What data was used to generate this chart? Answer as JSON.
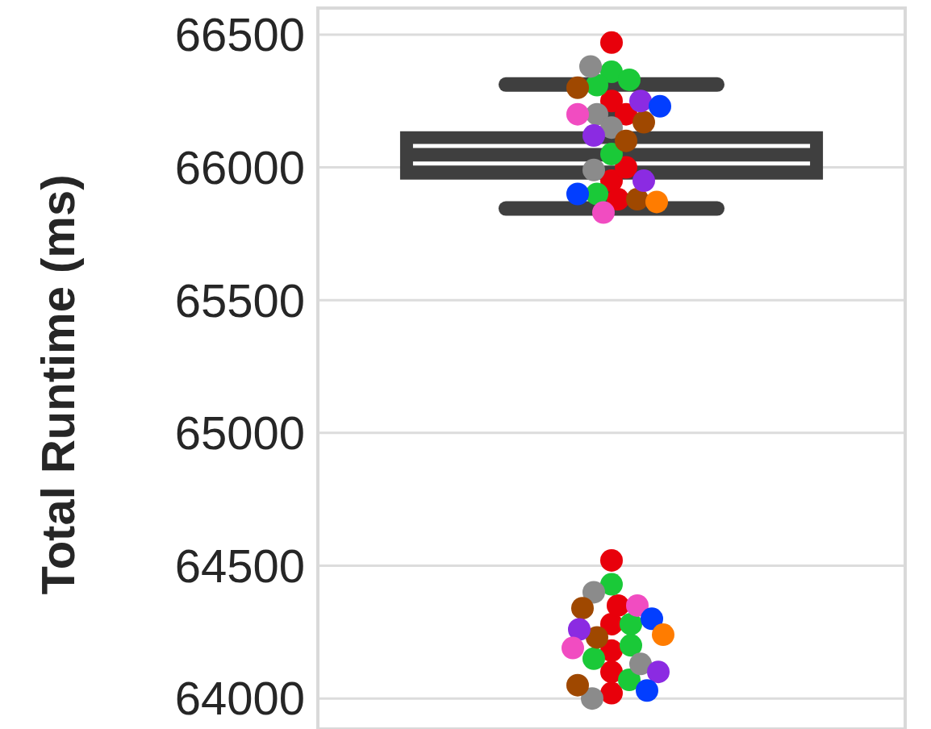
{
  "chart_data": {
    "type": "box",
    "ylabel": "Total Runtime (ms)",
    "categories": [
      null
    ],
    "boxes": [
      {
        "low": 65845,
        "q1": 65954,
        "median": 66015,
        "q3": 66136,
        "high": 66312,
        "mean": 66081
      }
    ],
    "colors": [
      "#3f3f3f"
    ],
    "series": [
      {
        "type": "scatter",
        "color": "#e8000b",
        "values": [
          66470
        ]
      },
      {
        "type": "scatter",
        "color": "#e8000b",
        "values": [
          66250
        ]
      },
      {
        "type": "scatter",
        "color": "#e8000b",
        "values": [
          66200
        ]
      },
      {
        "type": "scatter",
        "color": "#e8000b",
        "values": [
          65950
        ]
      },
      {
        "type": "scatter",
        "color": "#e8000b",
        "values": [
          66000
        ]
      },
      {
        "type": "scatter",
        "color": "#e8000b",
        "values": [
          65880
        ]
      },
      {
        "type": "scatter",
        "color": "#e8000b",
        "values": [
          64520
        ]
      },
      {
        "type": "scatter",
        "color": "#e8000b",
        "values": [
          64280
        ]
      },
      {
        "type": "scatter",
        "color": "#e8000b",
        "values": [
          64180
        ]
      },
      {
        "type": "scatter",
        "color": "#e8000b",
        "values": [
          64020
        ]
      },
      {
        "type": "scatter",
        "color": "#e8000b",
        "values": [
          64100
        ]
      },
      {
        "type": "scatter",
        "color": "#e8000b",
        "values": [
          64350
        ]
      },
      {
        "type": "scatter",
        "color": "#1ac938",
        "values": [
          66360
        ]
      },
      {
        "type": "scatter",
        "color": "#1ac938",
        "values": [
          66330
        ]
      },
      {
        "type": "scatter",
        "color": "#1ac938",
        "values": [
          66310
        ]
      },
      {
        "type": "scatter",
        "color": "#1ac938",
        "values": [
          65900
        ]
      },
      {
        "type": "scatter",
        "color": "#1ac938",
        "values": [
          66050
        ]
      },
      {
        "type": "scatter",
        "color": "#1ac938",
        "values": [
          64430
        ]
      },
      {
        "type": "scatter",
        "color": "#1ac938",
        "values": [
          64280
        ]
      },
      {
        "type": "scatter",
        "color": "#1ac938",
        "values": [
          64200
        ]
      },
      {
        "type": "scatter",
        "color": "#1ac938",
        "values": [
          64150
        ]
      },
      {
        "type": "scatter",
        "color": "#1ac938",
        "values": [
          64070
        ]
      },
      {
        "type": "scatter",
        "color": "#8b8b8b",
        "values": [
          66380
        ]
      },
      {
        "type": "scatter",
        "color": "#8b8b8b",
        "values": [
          66200
        ]
      },
      {
        "type": "scatter",
        "color": "#8b8b8b",
        "values": [
          66150
        ]
      },
      {
        "type": "scatter",
        "color": "#8b8b8b",
        "values": [
          65990
        ]
      },
      {
        "type": "scatter",
        "color": "#8b8b8b",
        "values": [
          64400
        ]
      },
      {
        "type": "scatter",
        "color": "#8b8b8b",
        "values": [
          64130
        ]
      },
      {
        "type": "scatter",
        "color": "#8b8b8b",
        "values": [
          64000
        ]
      },
      {
        "type": "scatter",
        "color": "#9f4800",
        "values": [
          66300
        ]
      },
      {
        "type": "scatter",
        "color": "#9f4800",
        "values": [
          66170
        ]
      },
      {
        "type": "scatter",
        "color": "#9f4800",
        "values": [
          66100
        ]
      },
      {
        "type": "scatter",
        "color": "#9f4800",
        "values": [
          65880
        ]
      },
      {
        "type": "scatter",
        "color": "#9f4800",
        "values": [
          64340
        ]
      },
      {
        "type": "scatter",
        "color": "#9f4800",
        "values": [
          64230
        ]
      },
      {
        "type": "scatter",
        "color": "#9f4800",
        "values": [
          64050
        ]
      },
      {
        "type": "scatter",
        "color": "#8b2be2",
        "values": [
          66250
        ]
      },
      {
        "type": "scatter",
        "color": "#8b2be2",
        "values": [
          66120
        ]
      },
      {
        "type": "scatter",
        "color": "#8b2be2",
        "values": [
          65950
        ]
      },
      {
        "type": "scatter",
        "color": "#8b2be2",
        "values": [
          64260
        ]
      },
      {
        "type": "scatter",
        "color": "#8b2be2",
        "values": [
          64100
        ]
      },
      {
        "type": "scatter",
        "color": "#f14cc1",
        "values": [
          66200
        ]
      },
      {
        "type": "scatter",
        "color": "#f14cc1",
        "values": [
          65830
        ]
      },
      {
        "type": "scatter",
        "color": "#f14cc1",
        "values": [
          64350
        ]
      },
      {
        "type": "scatter",
        "color": "#f14cc1",
        "values": [
          64190
        ]
      },
      {
        "type": "scatter",
        "color": "#023eff",
        "values": [
          66230
        ]
      },
      {
        "type": "scatter",
        "color": "#023eff",
        "values": [
          65900
        ]
      },
      {
        "type": "scatter",
        "color": "#023eff",
        "values": [
          64300
        ]
      },
      {
        "type": "scatter",
        "color": "#023eff",
        "values": [
          64030
        ]
      },
      {
        "type": "scatter",
        "color": "#ff7c00",
        "values": [
          65870
        ]
      },
      {
        "type": "scatter",
        "color": "#ff7c00",
        "values": [
          64240
        ]
      }
    ],
    "marker": "circle",
    "ylim": [
      63885,
      66600
    ],
    "yticks": [
      64000,
      64500,
      65000,
      65500,
      66000,
      66500
    ],
    "grid": "y",
    "tick_labels": "y"
  }
}
